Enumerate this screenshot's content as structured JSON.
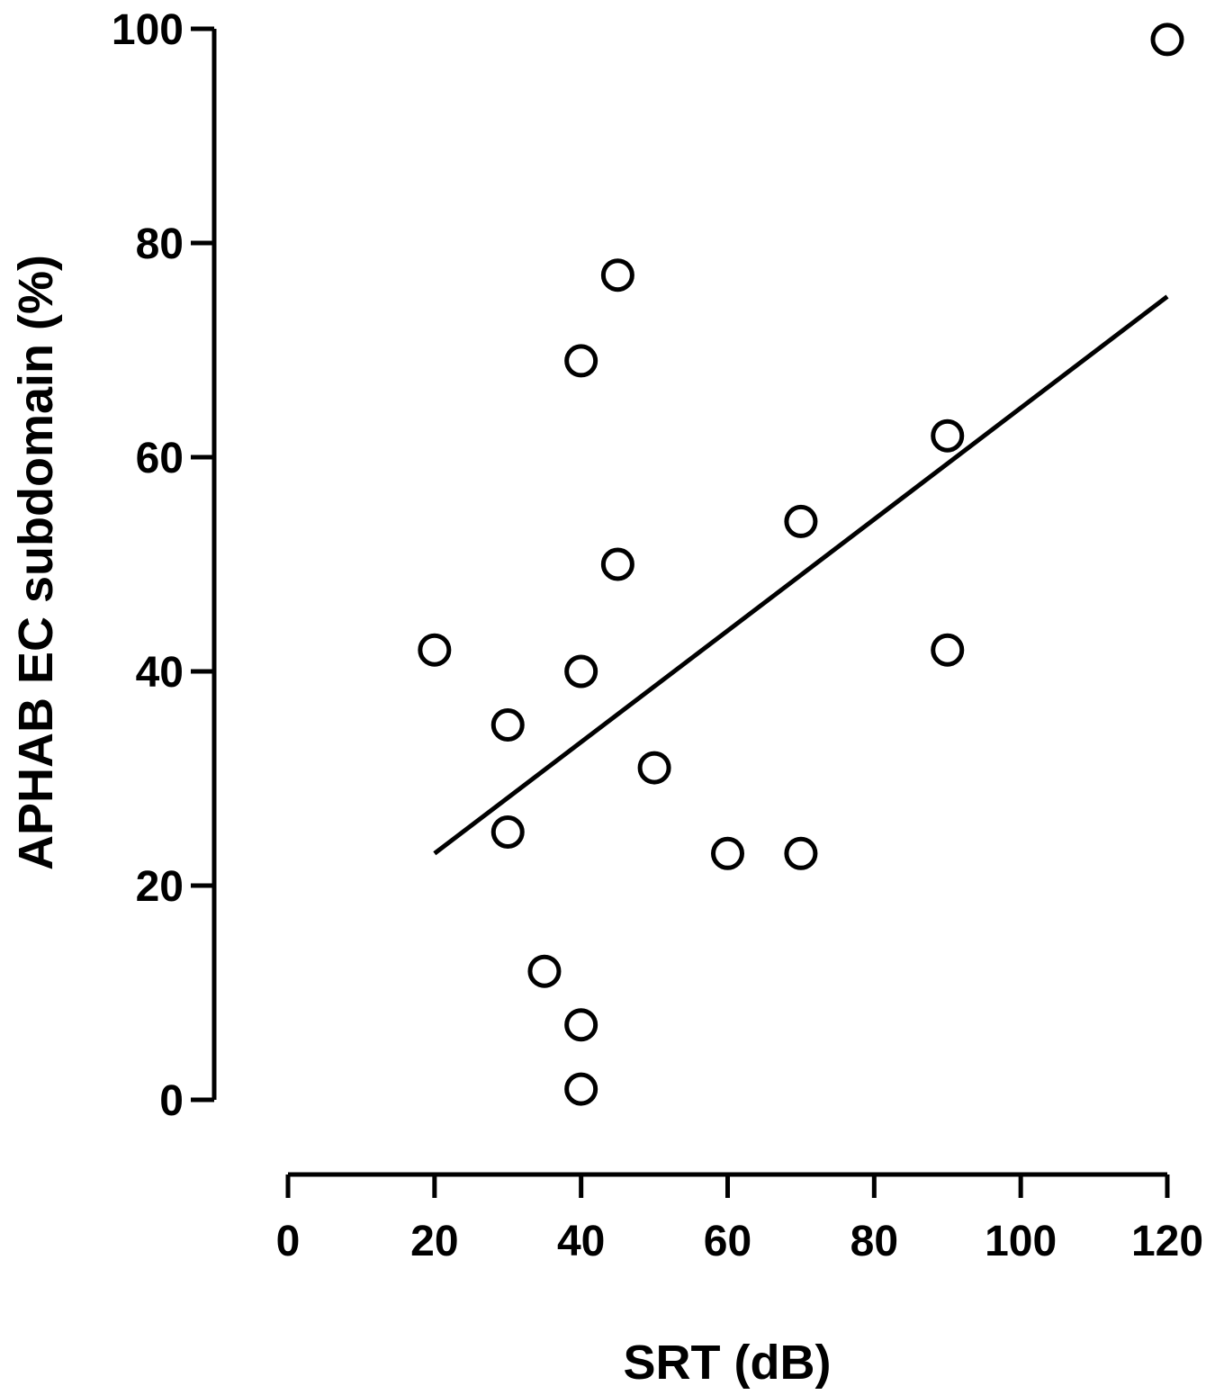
{
  "chart_data": {
    "type": "scatter",
    "title": "",
    "xlabel": "SRT (dB)",
    "ylabel": "APHAB EC subdomain (%)",
    "xlim": [
      0,
      120
    ],
    "ylim": [
      0,
      100
    ],
    "xticks": [
      "0",
      "20",
      "40",
      "60",
      "80",
      "100",
      "120"
    ],
    "yticks": [
      "0",
      "20",
      "40",
      "60",
      "80",
      "100"
    ],
    "grid": false,
    "legend": "none",
    "series": [
      {
        "points": [
          {
            "x": 20,
            "y": 42
          },
          {
            "x": 30,
            "y": 35
          },
          {
            "x": 30,
            "y": 25
          },
          {
            "x": 35,
            "y": 12
          },
          {
            "x": 40,
            "y": 69
          },
          {
            "x": 40,
            "y": 40
          },
          {
            "x": 40,
            "y": 7
          },
          {
            "x": 40,
            "y": 1
          },
          {
            "x": 45,
            "y": 77
          },
          {
            "x": 45,
            "y": 50
          },
          {
            "x": 50,
            "y": 31
          },
          {
            "x": 60,
            "y": 23
          },
          {
            "x": 70,
            "y": 54
          },
          {
            "x": 70,
            "y": 23
          },
          {
            "x": 90,
            "y": 62
          },
          {
            "x": 90,
            "y": 42
          },
          {
            "x": 120,
            "y": 99
          }
        ]
      }
    ],
    "trendline": {
      "x": [
        20,
        120
      ],
      "y": [
        23,
        75
      ]
    },
    "colors": {
      "marker_fill": "#ffffff",
      "marker_stroke": "#000000",
      "line": "#000000"
    }
  }
}
